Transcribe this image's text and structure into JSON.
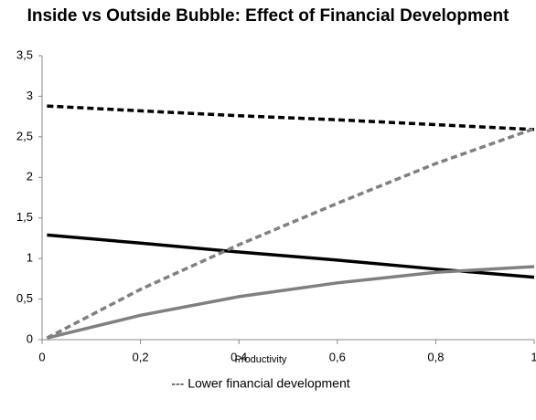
{
  "chart_data": {
    "type": "line",
    "title": "Inside vs Outside Bubble: Effect of Financial Development",
    "x_label": "Productivity",
    "note": "--- Lower financial development",
    "x": [
      0.01,
      0.2,
      0.4,
      0.6,
      0.8,
      1
    ],
    "series": [
      {
        "color": "#000000",
        "dashed": false,
        "values": [
          1.29,
          1.19,
          1.08,
          0.98,
          0.87,
          0.77
        ]
      },
      {
        "color": "#000000",
        "dashed": true,
        "values": [
          2.88,
          2.82,
          2.76,
          2.71,
          2.65,
          2.59
        ]
      },
      {
        "color": "#808080",
        "dashed": true,
        "values": [
          0.02,
          0.62,
          1.17,
          1.68,
          2.17,
          2.6
        ]
      },
      {
        "color": "#808080",
        "dashed": false,
        "values": [
          0.02,
          0.3,
          0.53,
          0.7,
          0.83,
          0.9
        ]
      }
    ],
    "xlim": [
      0,
      1
    ],
    "xticks": [
      0,
      {
        "value": 0.2,
        "label": "0,2"
      },
      {
        "value": 0.4,
        "label": "0,4"
      },
      {
        "value": 0.6,
        "label": "0,6"
      },
      {
        "value": 0.8,
        "label": "0,8"
      },
      1
    ],
    "ylim": [
      0,
      3.5
    ],
    "yticks": [
      0,
      {
        "value": 0.5,
        "label": "0,5"
      },
      1,
      {
        "value": 1.5,
        "label": "1,5"
      },
      2,
      {
        "value": 2.5,
        "label": "2,5"
      },
      3,
      {
        "value": 3.5,
        "label": "3,5"
      }
    ],
    "grid": false
  }
}
